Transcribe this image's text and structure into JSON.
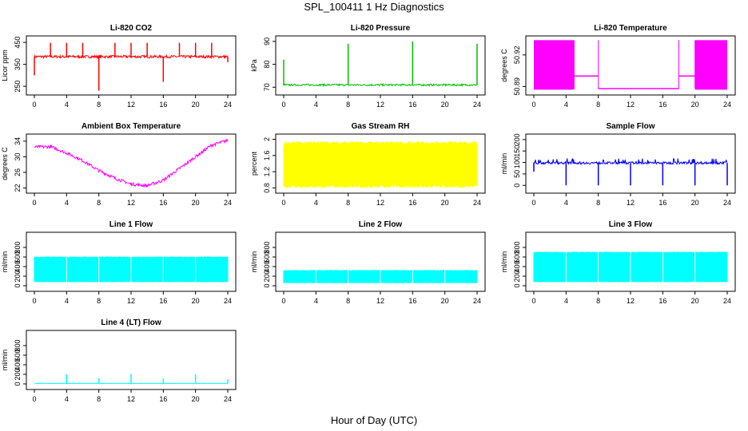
{
  "figure": {
    "title": "SPL_100411  1 Hz Diagnostics",
    "xlabel": "Hour of Day (UTC)"
  },
  "chart_data": [
    {
      "type": "line",
      "title": "Li-820 CO2",
      "ylabel": "Licor ppm",
      "color": "#ff0000",
      "xlim": [
        0,
        24
      ],
      "ylim": [
        225,
        465
      ],
      "xticks": [
        0,
        4,
        8,
        12,
        16,
        20,
        24
      ],
      "yticks": [
        250,
        350,
        450
      ],
      "series": [
        {
          "values": {
            "base": 385,
            "noise": 6,
            "spikes": [
              [
                0,
                300
              ],
              [
                2,
                448
              ],
              [
                4,
                448
              ],
              [
                6,
                448
              ],
              [
                8,
                230
              ],
              [
                10,
                448
              ],
              [
                12,
                448
              ],
              [
                14,
                448
              ],
              [
                16,
                270
              ],
              [
                18,
                448
              ],
              [
                20,
                448
              ],
              [
                22,
                448
              ],
              [
                24,
                360
              ]
            ]
          }
        }
      ]
    },
    {
      "type": "line",
      "title": "Li-820 Pressure",
      "ylabel": "kPa",
      "color": "#00c000",
      "xlim": [
        0,
        24
      ],
      "ylim": [
        68,
        91
      ],
      "xticks": [
        0,
        4,
        8,
        12,
        16,
        20,
        24
      ],
      "yticks": [
        70,
        80,
        90
      ],
      "series": [
        {
          "values": {
            "base": 71,
            "noise": 0.4,
            "spikes": [
              [
                0,
                82
              ],
              [
                8,
                89
              ],
              [
                16,
                90
              ],
              [
                24,
                89
              ]
            ]
          }
        }
      ]
    },
    {
      "type": "area",
      "title": "Li-820 Temperature",
      "ylabel": "degrees C",
      "color": "#ff00ff",
      "xlim": [
        0,
        24
      ],
      "ylim": [
        50.885,
        50.935
      ],
      "xticks": [
        0,
        4,
        8,
        12,
        16,
        20,
        24
      ],
      "yticks": [
        50.89,
        50.92
      ],
      "segments": [
        [
          0,
          5,
          50.934
        ],
        [
          5,
          8,
          50.9
        ],
        [
          8,
          18,
          50.888
        ],
        [
          18,
          20,
          50.9
        ],
        [
          20,
          24,
          50.934
        ]
      ]
    },
    {
      "type": "line",
      "title": "Ambient Box Temperature",
      "ylabel": "degrees C",
      "color": "#ff00ff",
      "xlim": [
        0,
        24
      ],
      "ylim": [
        21.5,
        35
      ],
      "xticks": [
        0,
        4,
        8,
        12,
        16,
        20,
        24
      ],
      "yticks": [
        22,
        26,
        30,
        34
      ],
      "series": [
        {
          "values": {
            "points": [
              [
                0,
                32.5
              ],
              [
                2,
                32.6
              ],
              [
                4,
                31
              ],
              [
                6,
                29
              ],
              [
                8,
                26.5
              ],
              [
                10,
                24.5
              ],
              [
                12,
                23
              ],
              [
                14,
                22.6
              ],
              [
                16,
                24
              ],
              [
                18,
                27
              ],
              [
                20,
                30
              ],
              [
                22,
                33
              ],
              [
                24,
                34.2
              ]
            ],
            "noise": 0.4
          }
        }
      ]
    },
    {
      "type": "area",
      "title": "Gas Stream RH",
      "ylabel": "percent",
      "color": "#ffff00",
      "xlim": [
        0,
        24
      ],
      "ylim": [
        0.75,
        2.05
      ],
      "xticks": [
        0,
        4,
        8,
        12,
        16,
        20,
        24
      ],
      "yticks": [
        0.8,
        1.2,
        1.6,
        2.0
      ],
      "band": {
        "low": 0.9,
        "high": 1.85,
        "min": 0.8,
        "max": 1.95
      }
    },
    {
      "type": "line",
      "title": "Sample Flow",
      "ylabel": "ml/min",
      "color": "#0000ff",
      "xlim": [
        0,
        24
      ],
      "ylim": [
        -20,
        210
      ],
      "xticks": [
        0,
        4,
        8,
        12,
        16,
        20,
        24
      ],
      "yticks": [
        0,
        50,
        100,
        150,
        200
      ],
      "series": [
        {
          "values": {
            "base": 98,
            "noise": 5,
            "spikes": [
              [
                0,
                60
              ],
              [
                4,
                0
              ],
              [
                8,
                0
              ],
              [
                12,
                0
              ],
              [
                16,
                0
              ],
              [
                20,
                0
              ],
              [
                24,
                0
              ]
            ],
            "peaks": 118
          }
        }
      ]
    },
    {
      "type": "area",
      "title": "Line 1 Flow",
      "ylabel": "ml/min",
      "color": "#00ffff",
      "xlim": [
        0,
        24
      ],
      "ylim": [
        -50,
        1050
      ],
      "xticks": [
        0,
        4,
        8,
        12,
        16,
        20,
        24
      ],
      "yticks": [
        0,
        200,
        400,
        600,
        800
      ],
      "band": {
        "low": 80,
        "high": 600
      },
      "gaps": [
        4,
        8,
        12,
        16,
        20
      ]
    },
    {
      "type": "area",
      "title": "Line 2 Flow",
      "ylabel": "ml/min",
      "color": "#00ffff",
      "xlim": [
        0,
        24
      ],
      "ylim": [
        -50,
        1050
      ],
      "xticks": [
        0,
        4,
        8,
        12,
        16,
        20,
        24
      ],
      "yticks": [
        0,
        200,
        400,
        600,
        800
      ],
      "band": {
        "low": 60,
        "high": 320
      },
      "gaps": [
        4,
        8,
        12,
        16,
        20
      ]
    },
    {
      "type": "area",
      "title": "Line 3 Flow",
      "ylabel": "ml/min",
      "color": "#00ffff",
      "xlim": [
        0,
        24
      ],
      "ylim": [
        -50,
        1050
      ],
      "xticks": [
        0,
        4,
        8,
        12,
        16,
        20,
        24
      ],
      "yticks": [
        0,
        200,
        400,
        600,
        800
      ],
      "band": {
        "low": 80,
        "high": 700
      },
      "gaps": [
        4,
        8,
        12,
        16,
        20
      ]
    },
    {
      "type": "line",
      "title": "Line 4 (LT) Flow",
      "ylabel": "ml/min",
      "color": "#00ffff",
      "xlim": [
        0,
        24
      ],
      "ylim": [
        -50,
        1050
      ],
      "xticks": [
        0,
        4,
        8,
        12,
        16,
        20,
        24
      ],
      "yticks": [
        0,
        200,
        400,
        600,
        800
      ],
      "series": [
        {
          "values": {
            "base": 10,
            "noise": 2,
            "spikes": [
              [
                4,
                200
              ],
              [
                8,
                120
              ],
              [
                12,
                210
              ],
              [
                16,
                110
              ],
              [
                20,
                200
              ],
              [
                24,
                100
              ]
            ]
          }
        }
      ]
    }
  ]
}
